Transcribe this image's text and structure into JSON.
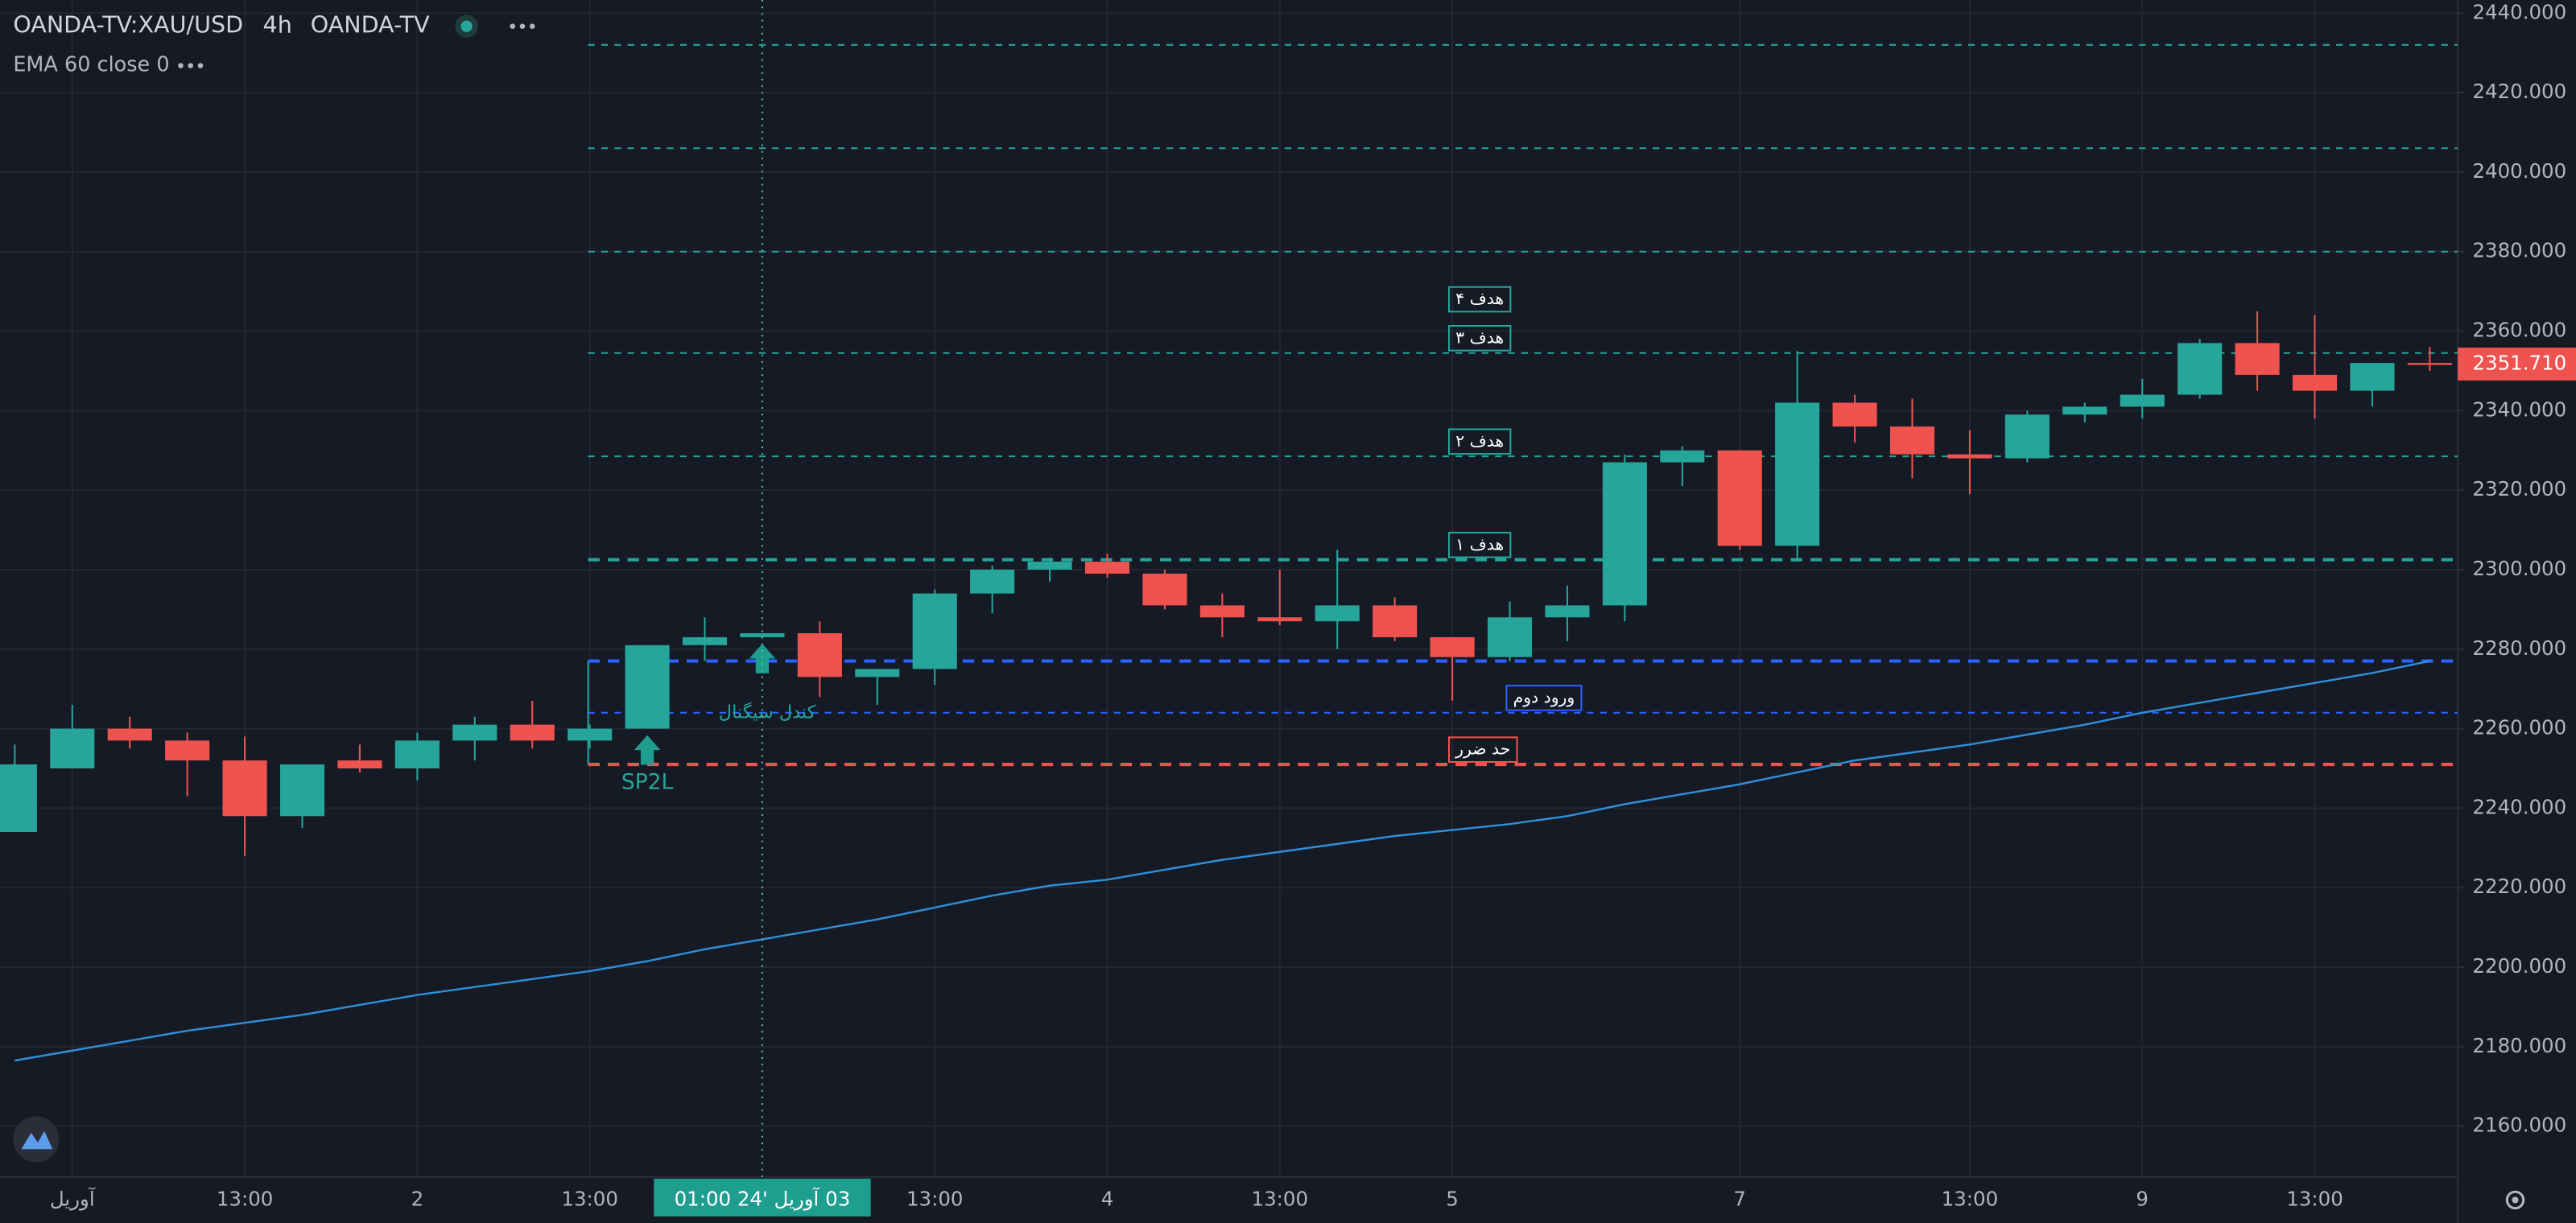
{
  "chart_data": {
    "type": "candlestick",
    "title": "OANDA-TV:XAU/USD",
    "interval": "4h",
    "source": "OANDA-TV",
    "categories": [
      null,
      "آوریل",
      null,
      null,
      "13:00",
      null,
      null,
      "2",
      null,
      null,
      "13:00",
      null,
      null,
      null,
      null,
      null,
      "13:00",
      null,
      null,
      "4",
      null,
      null,
      "13:00",
      null,
      null,
      "5",
      null,
      null,
      null,
      null,
      "7",
      null,
      null,
      null,
      "13:00",
      null,
      null,
      "9",
      null,
      null,
      "13:00",
      null,
      null
    ],
    "open": [
      2234,
      2250,
      2260,
      2257,
      2252,
      2238,
      2252,
      2250,
      2257,
      2261,
      2257,
      2260,
      2281,
      2283,
      2284,
      2273,
      2275,
      2294,
      2300,
      2302,
      2299,
      2291,
      2288,
      2287,
      2291,
      2283,
      2278,
      2288,
      2291,
      2327,
      2330,
      2306,
      2342,
      2336,
      2329,
      2328,
      2339,
      2341,
      2344,
      2357,
      2349,
      2345,
      2352
    ],
    "high": [
      2256,
      2266,
      2263,
      2259,
      2258,
      2251,
      2256,
      2259,
      2263,
      2267,
      2261,
      2281,
      2288,
      2284,
      2287,
      2275,
      2295,
      2301,
      2303,
      2304,
      2300,
      2294,
      2300,
      2305,
      2293,
      2283,
      2292,
      2296,
      2329,
      2331,
      2330,
      2355,
      2344,
      2343,
      2335,
      2340,
      2342,
      2348,
      2358,
      2365,
      2364,
      2352,
      2356
    ],
    "low": [
      2234,
      2250,
      2255,
      2243,
      2228,
      2235,
      2249,
      2247,
      2252,
      2255,
      2255,
      2260,
      2277,
      2283,
      2268,
      2266,
      2271,
      2289,
      2297,
      2298,
      2290,
      2283,
      2286,
      2280,
      2282,
      2267,
      2277,
      2282,
      2287,
      2321,
      2305,
      2302,
      2332,
      2323,
      2319,
      2327,
      2337,
      2338,
      2343,
      2345,
      2338,
      2341,
      2350
    ],
    "close": [
      2251,
      2260,
      2257,
      2252,
      2238,
      2251,
      2250,
      2257,
      2261,
      2257,
      2260,
      2281,
      2283,
      2284,
      2273,
      2275,
      2294,
      2300,
      2302,
      2299,
      2291,
      2288,
      2287,
      2291,
      2283,
      2278,
      2288,
      2291,
      2327,
      2330,
      2306,
      2342,
      2336,
      2329,
      2328,
      2339,
      2341,
      2344,
      2357,
      2349,
      2345,
      2352,
      2351.71
    ],
    "up_color": "#26a69a",
    "down_color": "#ef5350",
    "series": [
      {
        "name": "EMA 60 close 0",
        "color": "#2f8fd8",
        "values": [
          2176.5,
          2179,
          2181.5,
          2184,
          2186,
          2188,
          2190.5,
          2193,
          2195,
          2197,
          2199,
          2201.5,
          2204.5,
          2207,
          2209.5,
          2212,
          2215,
          2218,
          2220.5,
          2222,
          2224.5,
          2227,
          2229,
          2231,
          2233,
          2234.5,
          2236,
          2238,
          2241,
          2243.5,
          2246,
          2249,
          2252,
          2254,
          2256,
          2258.5,
          2261,
          2264,
          2266.5,
          2269,
          2271.5,
          2274,
          2277
        ]
      }
    ],
    "levels": [
      {
        "value": 2432,
        "color": "#26a69a"
      },
      {
        "value": 2406,
        "color": "#26a69a"
      },
      {
        "value": 2380,
        "color": "#26a69a"
      },
      {
        "value": 2368,
        "label": "هدف ۴",
        "color": "#26a69a",
        "line": false
      },
      {
        "value": 2354.5,
        "label": "هدف ۳",
        "color": "#26a69a"
      },
      {
        "value": 2328.5,
        "label": "هدف ۲",
        "color": "#26a69a"
      },
      {
        "value": 2302.5,
        "label": "هدف ۱",
        "color": "#26a69a",
        "width": 2
      },
      {
        "value": 2277,
        "color": "#2962ff",
        "width": 2
      },
      {
        "value": 2264,
        "label": "ورود دوم",
        "color": "#2962ff"
      },
      {
        "value": 2251,
        "label": "حد ضرر",
        "color": "#ef5350",
        "width": 2
      }
    ],
    "signal_label": "کندل سیگنال",
    "strategy_label": "SP2L",
    "crosshair_label": "03 آوریل '24   01:00",
    "last_price": {
      "value": 2351.71,
      "label": "2351.710"
    },
    "ylim": [
      2147.2,
      2443.3
    ],
    "yticks": [
      {
        "value": 2160,
        "label": "2160.000"
      },
      {
        "value": 2180,
        "label": "2180.000"
      },
      {
        "value": 2200,
        "label": "2200.000"
      },
      {
        "value": 2220,
        "label": "2220.000"
      },
      {
        "value": 2240,
        "label": "2240.000"
      },
      {
        "value": 2260,
        "label": "2260.000"
      },
      {
        "value": 2280,
        "label": "2280.000"
      },
      {
        "value": 2300,
        "label": "2300.000"
      },
      {
        "value": 2320,
        "label": "2320.000"
      },
      {
        "value": 2340,
        "label": "2340.000"
      },
      {
        "value": 2360,
        "label": "2360.000"
      },
      {
        "value": 2380,
        "label": "2380.000"
      },
      {
        "value": 2400,
        "label": "2400.000"
      },
      {
        "value": 2420,
        "label": "2420.000"
      },
      {
        "value": 2440,
        "label": "2440.000"
      }
    ],
    "grid": true
  }
}
